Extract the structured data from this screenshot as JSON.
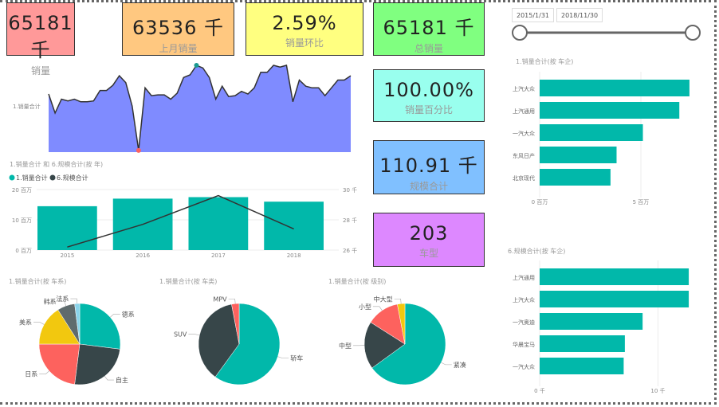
{
  "cards": [
    {
      "value": "65181 千",
      "label": "销量",
      "color": "#FF9999"
    },
    {
      "value": "63536 千",
      "label": "上月销量",
      "color": "#FFC880"
    },
    {
      "value": "2.59%",
      "label": "销量环比",
      "color": "#FFFF80"
    },
    {
      "value": "65181 千",
      "label": "总销量",
      "color": "#80FF80"
    },
    {
      "value": "100.00%",
      "label": "销量百分比",
      "color": "#99FFEE"
    },
    {
      "value": "110.91 千",
      "label": "规模合计",
      "color": "#80C0FF"
    },
    {
      "value": "203",
      "label": "车型",
      "color": "#DD88FF"
    }
  ],
  "slicer": {
    "start": "2015/1/31",
    "end": "2018/11/30",
    "range_fraction": [
      0,
      1
    ]
  },
  "colors": {
    "teal": "#01B8AA",
    "dark": "#374649",
    "red": "#FD625E",
    "yellow": "#F2C80F",
    "gray": "#5F6B6D",
    "lightblue": "#8AD4EB",
    "area": "#7F8BFF"
  },
  "chart_data": [
    {
      "type": "area",
      "ylabel": "1.销量合计",
      "values": [
        67,
        45,
        61,
        59,
        61,
        58,
        58,
        59,
        71,
        71,
        77,
        88,
        80,
        53,
        2,
        74,
        65,
        66,
        66,
        61,
        68,
        86,
        89,
        100,
        97,
        86,
        61,
        76,
        64,
        65,
        70,
        67,
        74,
        92,
        92,
        100,
        98,
        100,
        58,
        83,
        76,
        74,
        74,
        65,
        74,
        83,
        83,
        88
      ]
    },
    {
      "type": "bar+line",
      "title": "1.销量合计 和 6.规模合计(按 年)",
      "legend": [
        "1.销量合计",
        "6.规模合计"
      ],
      "categories": [
        "2015",
        "2016",
        "2017",
        "2018"
      ],
      "bars": [
        14.5,
        17,
        17.5,
        16
      ],
      "line": [
        26.2,
        27.7,
        29.6,
        27.4
      ],
      "y_ticks": [
        "0 百万",
        "10 百万",
        "20 百万"
      ],
      "y2_ticks": [
        "26 千",
        "28 千",
        "30 千"
      ],
      "ylim": [
        0,
        20
      ],
      "y2lim": [
        26,
        30
      ]
    },
    {
      "type": "hbar",
      "title": "1.销量合计(按 车企)",
      "categories": [
        "上汽大众",
        "上汽通用",
        "一汽大众",
        "东风日产",
        "北京现代"
      ],
      "values": [
        7.4,
        6.9,
        5.1,
        3.8,
        3.5
      ],
      "x_ticks": [
        "0 百万",
        "5 百万"
      ],
      "xmax": 7.6
    },
    {
      "type": "hbar",
      "title": "6.规模合计(按 车企)",
      "categories": [
        "上汽通用",
        "上汽大众",
        "一汽奥迪",
        "华晨宝马",
        "一汽大众"
      ],
      "values": [
        12.6,
        12.6,
        8.7,
        7.2,
        7.1
      ],
      "x_ticks": [
        "0 千",
        "10 千"
      ],
      "xmax": 13
    },
    {
      "type": "pie",
      "title": "1.销量合计(按 车系)",
      "labels": [
        "德系",
        "自主",
        "日系",
        "美系",
        "韩系",
        "法系"
      ],
      "values": [
        27,
        25,
        23,
        16,
        7,
        2
      ],
      "colors": [
        "#01B8AA",
        "#374649",
        "#FD625E",
        "#F2C80F",
        "#5F6B6D",
        "#8AD4EB"
      ]
    },
    {
      "type": "pie",
      "title": "1.销量合计(按 车类)",
      "labels": [
        "轿车",
        "SUV",
        "MPV"
      ],
      "values": [
        60,
        37,
        3
      ],
      "colors": [
        "#01B8AA",
        "#374649",
        "#FD625E"
      ]
    },
    {
      "type": "pie",
      "title": "1.销量合计(按 级别)",
      "labels": [
        "紧凑",
        "中型",
        "小型",
        "中大型"
      ],
      "values": [
        65,
        19,
        13,
        3
      ],
      "colors": [
        "#01B8AA",
        "#374649",
        "#FD625E",
        "#F2C80F"
      ]
    }
  ]
}
